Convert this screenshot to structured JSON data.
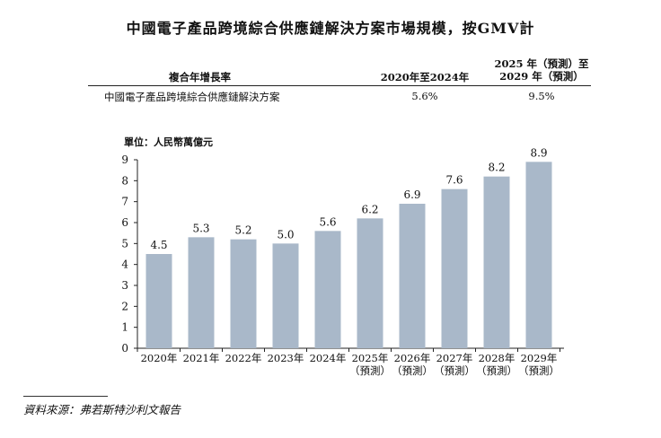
{
  "chart_data": {
    "type": "bar",
    "title": "中國電子產品跨境綜合供應鏈解決方案市場規模，按GMV計",
    "ylabel": "單位：人民幣萬億元",
    "xlabel": "",
    "ylim": [
      0,
      9
    ],
    "yticks": [
      "0",
      "1",
      "2",
      "3",
      "4",
      "5",
      "6",
      "7",
      "8",
      "9"
    ],
    "categories": [
      {
        "year": "2020年",
        "note": ""
      },
      {
        "year": "2021年",
        "note": ""
      },
      {
        "year": "2022年",
        "note": ""
      },
      {
        "year": "2023年",
        "note": ""
      },
      {
        "year": "2024年",
        "note": ""
      },
      {
        "year": "2025年",
        "note": "（預測）"
      },
      {
        "year": "2026年",
        "note": "（預測）"
      },
      {
        "year": "2027年",
        "note": "（預測）"
      },
      {
        "year": "2028年",
        "note": "（預測）"
      },
      {
        "year": "2029年",
        "note": "（預測）"
      }
    ],
    "values": [
      4.5,
      5.3,
      5.2,
      5.0,
      5.6,
      6.2,
      6.9,
      7.6,
      8.2,
      8.9
    ],
    "value_labels": [
      "4.5",
      "5.3",
      "5.2",
      "5.0",
      "5.6",
      "6.2",
      "6.9",
      "7.6",
      "8.2",
      "8.9"
    ],
    "bar_color": "#a9b8c9",
    "grid": false
  },
  "cagr_table": {
    "header_label": "複合年增長率",
    "col1_header": "2020年至2024年",
    "col2_header_line1": "2025 年（預測）至",
    "col2_header_line2": "2029 年（預測）",
    "row_label": "中國電子產品跨境綜合供應鏈解決方案",
    "row_col1": "5.6%",
    "row_col2": "9.5%"
  },
  "source": "資料來源：弗若斯特沙利文報告"
}
